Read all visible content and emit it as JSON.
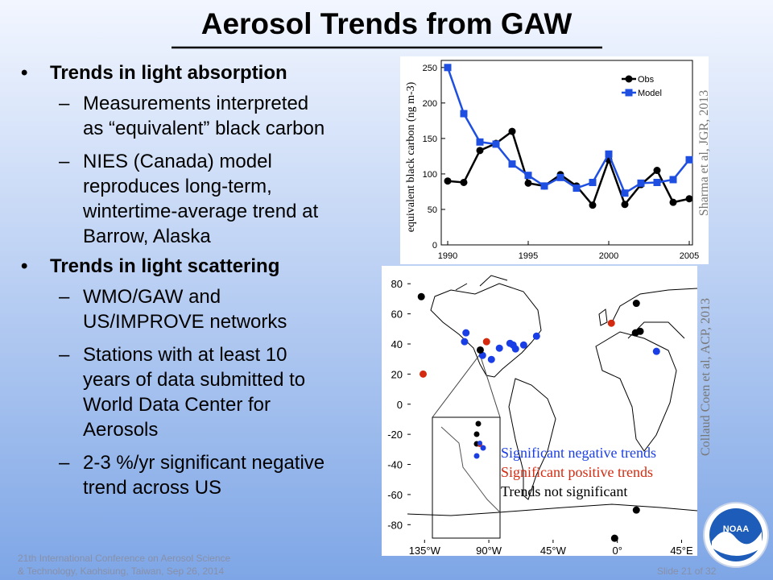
{
  "slide": {
    "title": "Aerosol Trends from GAW",
    "bullets": [
      {
        "text": "Trends in light absorption",
        "sub": [
          [
            "Measurements interpreted",
            "as “equivalent” black carbon"
          ],
          [
            "NIES (Canada) model",
            "reproduces long-term,",
            "wintertime-average trend at",
            "Barrow, Alaska"
          ]
        ]
      },
      {
        "text": "Trends in light scattering",
        "sub": [
          [
            "WMO/GAW and",
            "US/IMPROVE  networks"
          ],
          [
            "Stations with at least 10",
            "years of data submitted to",
            "World Data Center for",
            "Aerosols"
          ],
          [
            "2-3 %/yr significant negative",
            "trend across US"
          ]
        ]
      }
    ],
    "citations": [
      "Sharma et al, JGR, 2013",
      "Collaud Coen et al, ACP, 2013"
    ],
    "footer": {
      "conference": [
        "21th International  Conference  on Aerosol Science",
        "& Technology,  Kaohsiung, Taiwan, Sep 26, 2014"
      ],
      "slide_number": "Slide 21 of 32"
    },
    "logo": "NOAA"
  },
  "chart_data": [
    {
      "type": "line",
      "ylabel": "equivalent  black carbon (ng m-3)",
      "x": [
        1990,
        1991,
        1992,
        1993,
        1994,
        1995,
        1996,
        1997,
        1998,
        1999,
        2000,
        2001,
        2002,
        2003,
        2004,
        2005
      ],
      "series": [
        {
          "name": "Obs",
          "color": "#000000",
          "values": [
            90,
            88,
            133,
            143,
            160,
            87,
            83,
            99,
            83,
            56,
            120,
            57,
            85,
            105,
            60,
            65
          ]
        },
        {
          "name": "Model",
          "color": "#1f4fe0",
          "values": [
            250,
            185,
            145,
            142,
            114,
            98,
            83,
            95,
            80,
            88,
            128,
            73,
            87,
            88,
            92,
            120
          ]
        }
      ],
      "xlim": [
        1989.6,
        2005.2
      ],
      "xticks": [
        1990,
        1995,
        2000,
        2005
      ],
      "ylim": [
        0,
        260
      ],
      "yticks": [
        0,
        50,
        100,
        150,
        200,
        250
      ],
      "legend": "upper right"
    },
    {
      "type": "scatter",
      "series": [
        {
          "name": "Significant negative trends",
          "color": "#1a3ee6",
          "x": [
            -106,
            -107,
            -94.4,
            -88.2,
            -82.6,
            -75.2,
            -71.3,
            -73,
            -65.6,
            -56.6,
            27.4
          ],
          "values": [
            47.4,
            41.5,
            32.4,
            29.7,
            37.2,
            40.4,
            36.7,
            39.3,
            39.3,
            45.2,
            35.1
          ]
        },
        {
          "name": "Significant positive trends",
          "color": "#d42a10",
          "x": [
            -136,
            -91.6,
            -4.2
          ],
          "values": [
            20,
            41.5,
            53.8
          ]
        },
        {
          "name": "Trends not significant",
          "color": "#000000",
          "x": [
            -137.3,
            -96,
            13.3,
            12.7,
            16,
            -1.9,
            13.3
          ],
          "values": [
            71.4,
            36,
            67,
            47.4,
            48.4,
            -89,
            -70.3
          ]
        }
      ],
      "xlim": [
        -147,
        56
      ],
      "xticks": [
        {
          "value": -135,
          "label": "135°W"
        },
        {
          "value": -90,
          "label": "90°W"
        },
        {
          "value": -45,
          "label": "45°W"
        },
        {
          "value": 0,
          "label": "0°"
        },
        {
          "value": 45,
          "label": "45°E"
        }
      ],
      "ylim": [
        -90,
        86
      ],
      "yticks": [
        80,
        60,
        40,
        20,
        0,
        -20,
        -40,
        -60,
        -80
      ]
    }
  ]
}
